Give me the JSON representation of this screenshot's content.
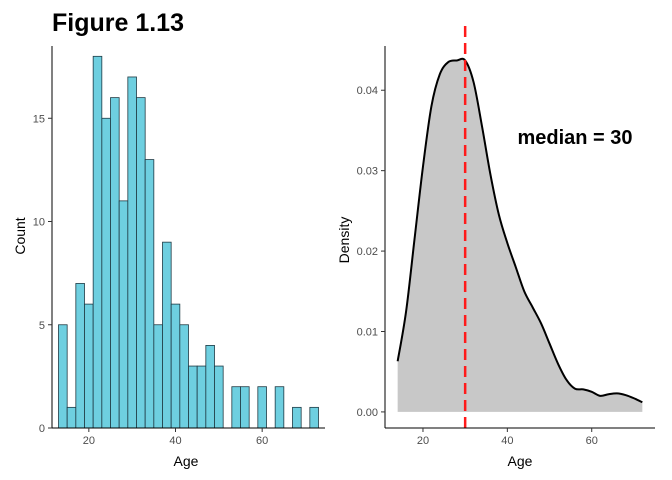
{
  "figure_title": "Figure 1.13",
  "chart_data": [
    {
      "type": "bar",
      "subtype": "histogram",
      "xlabel": "Age",
      "ylabel": "Count",
      "bin_width": 2,
      "bin_starts": [
        13,
        15,
        17,
        19,
        21,
        23,
        25,
        27,
        29,
        31,
        33,
        35,
        37,
        39,
        41,
        43,
        45,
        47,
        49,
        51,
        53,
        55,
        57,
        59,
        61,
        63,
        65,
        67,
        69,
        71
      ],
      "values": [
        5,
        1,
        7,
        6,
        18,
        15,
        16,
        11,
        17,
        16,
        13,
        5,
        9,
        6,
        5,
        3,
        3,
        4,
        3,
        0,
        2,
        2,
        0,
        2,
        0,
        2,
        0,
        1,
        0,
        1
      ],
      "fill": "#6ecfe0",
      "stroke": "#1f3a44",
      "xlim": [
        11.5,
        74.5
      ],
      "ylim": [
        0,
        18.5
      ],
      "xticks": [
        20,
        40,
        60
      ],
      "yticks": [
        0,
        5,
        10,
        15
      ]
    },
    {
      "type": "area",
      "subtype": "density",
      "xlabel": "Age",
      "ylabel": "Density",
      "x": [
        14,
        16,
        18,
        20,
        22,
        24,
        26,
        28,
        30,
        32,
        34,
        36,
        38,
        40,
        42,
        44,
        46,
        48,
        50,
        52,
        54,
        56,
        58,
        60,
        62,
        64,
        66,
        68,
        70,
        72
      ],
      "y": [
        0.0063,
        0.0125,
        0.0215,
        0.0305,
        0.038,
        0.042,
        0.0435,
        0.0437,
        0.0437,
        0.041,
        0.0355,
        0.0295,
        0.0245,
        0.021,
        0.018,
        0.015,
        0.013,
        0.011,
        0.0085,
        0.006,
        0.004,
        0.0029,
        0.0028,
        0.0025,
        0.002,
        0.0022,
        0.0023,
        0.0021,
        0.0017,
        0.0012
      ],
      "fill": "#c8c8c8",
      "stroke": "#000000",
      "median": 30,
      "median_color": "#ff1a1a",
      "annotation": "median = 30",
      "xlim": [
        11,
        75
      ],
      "ylim": [
        -0.002,
        0.0455
      ],
      "xticks": [
        20,
        40,
        60
      ],
      "yticks": [
        "0.00",
        "0.01",
        "0.02",
        "0.03",
        "0.04"
      ]
    }
  ]
}
